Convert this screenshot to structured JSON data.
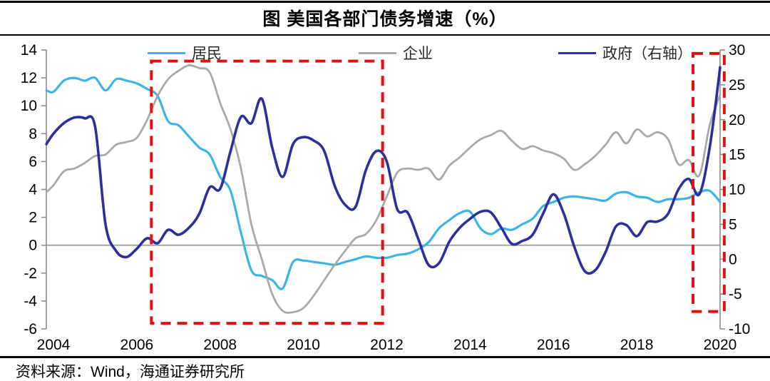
{
  "figure": {
    "title": "图 美国各部门债务增速（%）",
    "source": "资料来源：Wind，海通证券研究所"
  },
  "legend": [
    {
      "label": "居民",
      "color": "#3cb4e6"
    },
    {
      "label": "企业",
      "color": "#a9a9a9"
    },
    {
      "label": "政府（右轴）",
      "color": "#2c2f9c"
    }
  ],
  "chart_data": {
    "type": "line",
    "title": "图 美国各部门债务增速（%）",
    "xlabel": "",
    "ylabel_left": "",
    "ylabel_right": "",
    "x_ticks": [
      2004,
      2006,
      2008,
      2010,
      2012,
      2014,
      2016,
      2018,
      2020
    ],
    "left_axis": {
      "range": [
        -6,
        14
      ],
      "ticks": [
        14,
        12,
        10,
        8,
        6,
        4,
        2,
        0,
        -2,
        -4,
        -6
      ]
    },
    "right_axis": {
      "range": [
        -10,
        30
      ],
      "ticks": [
        30,
        25,
        20,
        15,
        10,
        5,
        0,
        -5,
        -10
      ]
    },
    "zero_line_on_left_axis": 0,
    "grid": false,
    "legend_position": "top",
    "colors": {
      "axis": "#8c8c8c",
      "zero_line": "#a6a6a6",
      "highlight": "#e01111",
      "tick_text": "#000000"
    },
    "x": [
      2003.83,
      2004,
      2004.25,
      2004.5,
      2004.75,
      2005,
      2005.25,
      2005.5,
      2005.75,
      2006,
      2006.25,
      2006.5,
      2006.75,
      2007,
      2007.25,
      2007.5,
      2007.75,
      2008,
      2008.25,
      2008.5,
      2008.75,
      2009,
      2009.25,
      2009.5,
      2009.75,
      2010,
      2010.25,
      2010.5,
      2010.75,
      2011,
      2011.25,
      2011.5,
      2011.75,
      2012,
      2012.25,
      2012.5,
      2012.75,
      2013,
      2013.25,
      2013.5,
      2013.75,
      2014,
      2014.25,
      2014.5,
      2014.75,
      2015,
      2015.25,
      2015.5,
      2015.75,
      2016,
      2016.25,
      2016.5,
      2016.75,
      2017,
      2017.25,
      2017.5,
      2017.75,
      2018,
      2018.25,
      2018.5,
      2018.75,
      2019,
      2019.25,
      2019.5,
      2019.75,
      2020
    ],
    "series": [
      {
        "id": "households",
        "name": "居民",
        "axis": "left",
        "color": "#3cb4e6",
        "width": 3.2,
        "values": [
          11.1,
          11.0,
          11.8,
          12.0,
          11.8,
          12.0,
          11.1,
          11.9,
          11.8,
          11.6,
          11.2,
          10.7,
          8.9,
          8.6,
          7.8,
          7.0,
          6.5,
          4.9,
          3.9,
          0.9,
          -1.8,
          -2.2,
          -2.5,
          -3.1,
          -1.2,
          -1.1,
          -1.2,
          -1.3,
          -1.4,
          -1.2,
          -1.0,
          -0.8,
          -0.9,
          -0.9,
          -0.7,
          -0.6,
          -0.3,
          0.2,
          1.2,
          1.8,
          2.3,
          2.4,
          1.2,
          0.8,
          1.2,
          1.1,
          1.5,
          1.9,
          2.8,
          3.1,
          3.4,
          3.5,
          3.4,
          3.3,
          3.2,
          3.7,
          3.8,
          3.5,
          3.4,
          3.1,
          3.3,
          3.3,
          3.4,
          3.8,
          3.9,
          3.1
        ]
      },
      {
        "id": "corporates",
        "name": "企业",
        "axis": "left",
        "color": "#a9a9a9",
        "width": 2.8,
        "values": [
          3.8,
          4.3,
          5.3,
          5.5,
          5.9,
          6.4,
          6.5,
          7.2,
          7.4,
          7.7,
          9.0,
          10.7,
          11.9,
          12.5,
          12.9,
          12.7,
          12.4,
          10.2,
          8.3,
          5.5,
          1.5,
          -1.0,
          -3.5,
          -4.7,
          -4.8,
          -4.5,
          -3.6,
          -2.5,
          -1.4,
          -0.4,
          0.5,
          0.8,
          1.8,
          3.5,
          5.2,
          5.5,
          5.4,
          5.5,
          4.7,
          5.7,
          6.3,
          7.0,
          7.6,
          7.9,
          8.2,
          7.5,
          6.9,
          7.1,
          6.8,
          6.6,
          6.2,
          5.4,
          5.8,
          6.4,
          7.2,
          8.1,
          7.3,
          8.3,
          7.8,
          8.1,
          7.6,
          5.8,
          6.1,
          5.0,
          8.6,
          10.8
        ]
      },
      {
        "id": "government",
        "name": "政府（右轴）",
        "axis": "right",
        "color": "#2c2f9c",
        "width": 3.6,
        "values": [
          16.5,
          18.0,
          19.5,
          20.3,
          20.2,
          19.0,
          5.0,
          1.2,
          0.3,
          1.5,
          3.0,
          2.3,
          4.2,
          3.5,
          4.5,
          6.5,
          10.3,
          10.1,
          15.5,
          20.4,
          19.5,
          23.0,
          16.0,
          11.8,
          16.5,
          17.5,
          17.0,
          15.5,
          10.5,
          7.8,
          7.5,
          12.8,
          15.5,
          14.0,
          7.2,
          6.7,
          3.0,
          -0.8,
          -0.6,
          2.5,
          4.5,
          5.8,
          6.8,
          6.7,
          4.5,
          2.2,
          2.6,
          3.5,
          6.5,
          9.3,
          6.5,
          1.8,
          -1.7,
          -1.6,
          1.0,
          4.7,
          4.9,
          3.3,
          5.3,
          5.4,
          6.5,
          10.0,
          11.5,
          9.3,
          16.0,
          27.5
        ]
      }
    ],
    "annotations": {
      "highlight_boxes": [
        {
          "x_from": 2006.35,
          "x_to": 2011.9,
          "axis": "left",
          "y_from": -5.6,
          "y_to": 13.2
        },
        {
          "x_from": 2019.35,
          "x_to": 2020.1,
          "axis": "right",
          "y_from": -7.5,
          "y_to": 29.5
        }
      ]
    }
  }
}
